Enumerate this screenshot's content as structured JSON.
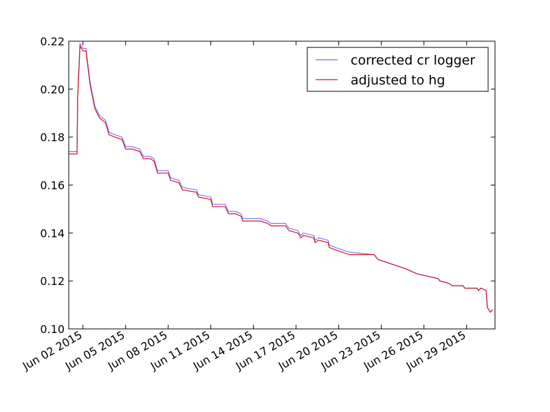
{
  "chart_data": {
    "type": "line",
    "title": "",
    "xlabel": "",
    "ylabel": "",
    "x_start": "2015-06-01",
    "x_end": "2015-07-01",
    "ylim": [
      0.1,
      0.22
    ],
    "grid": false,
    "legend_position": "top-right",
    "y_ticks": [
      {
        "value": 0.1,
        "label": "0.10"
      },
      {
        "value": 0.12,
        "label": "0.12"
      },
      {
        "value": 0.14,
        "label": "0.14"
      },
      {
        "value": 0.16,
        "label": "0.16"
      },
      {
        "value": 0.18,
        "label": "0.18"
      },
      {
        "value": 0.2,
        "label": "0.20"
      },
      {
        "value": 0.22,
        "label": "0.22"
      }
    ],
    "x_ticks": [
      {
        "date": "2015-06-02",
        "label": "Jun 02 2015"
      },
      {
        "date": "2015-06-05",
        "label": "Jun 05 2015"
      },
      {
        "date": "2015-06-08",
        "label": "Jun 08 2015"
      },
      {
        "date": "2015-06-11",
        "label": "Jun 11 2015"
      },
      {
        "date": "2015-06-14",
        "label": "Jun 14 2015"
      },
      {
        "date": "2015-06-17",
        "label": "Jun 17 2015"
      },
      {
        "date": "2015-06-20",
        "label": "Jun 20 2015"
      },
      {
        "date": "2015-06-23",
        "label": "Jun 23 2015"
      },
      {
        "date": "2015-06-26",
        "label": "Jun 26 2015"
      },
      {
        "date": "2015-06-29",
        "label": "Jun 29 2015"
      }
    ],
    "series": [
      {
        "name": "corrected cr logger",
        "color": "#6b6bff",
        "points": [
          [
            "2015-06-01 00:00",
            0.174
          ],
          [
            "2015-06-01 14:00",
            0.174
          ],
          [
            "2015-06-01 15:00",
            0.197
          ],
          [
            "2015-06-01 19:00",
            0.219
          ],
          [
            "2015-06-02 00:00",
            0.217
          ],
          [
            "2015-06-02 05:00",
            0.217
          ],
          [
            "2015-06-02 12:00",
            0.203
          ],
          [
            "2015-06-02 20:00",
            0.193
          ],
          [
            "2015-06-03 04:00",
            0.189
          ],
          [
            "2015-06-03 14:00",
            0.187
          ],
          [
            "2015-06-03 20:00",
            0.182
          ],
          [
            "2015-06-04 06:00",
            0.181
          ],
          [
            "2015-06-04 18:00",
            0.18
          ],
          [
            "2015-06-05 00:00",
            0.176
          ],
          [
            "2015-06-05 12:00",
            0.176
          ],
          [
            "2015-06-06 00:00",
            0.175
          ],
          [
            "2015-06-06 06:00",
            0.172
          ],
          [
            "2015-06-06 18:00",
            0.172
          ],
          [
            "2015-06-07 00:00",
            0.171
          ],
          [
            "2015-06-07 06:00",
            0.166
          ],
          [
            "2015-06-08 00:00",
            0.166
          ],
          [
            "2015-06-08 04:00",
            0.163
          ],
          [
            "2015-06-08 18:00",
            0.162
          ],
          [
            "2015-06-09 00:00",
            0.159
          ],
          [
            "2015-06-10 00:00",
            0.158
          ],
          [
            "2015-06-10 03:00",
            0.156
          ],
          [
            "2015-06-11 00:00",
            0.155
          ],
          [
            "2015-06-11 03:00",
            0.152
          ],
          [
            "2015-06-12 00:00",
            0.152
          ],
          [
            "2015-06-12 06:00",
            0.149
          ],
          [
            "2015-06-12 18:00",
            0.149
          ],
          [
            "2015-06-13 03:00",
            0.148
          ],
          [
            "2015-06-13 06:00",
            0.146
          ],
          [
            "2015-06-14 12:00",
            0.146
          ],
          [
            "2015-06-15 00:00",
            0.145
          ],
          [
            "2015-06-15 06:00",
            0.144
          ],
          [
            "2015-06-16 06:00",
            0.144
          ],
          [
            "2015-06-16 12:00",
            0.142
          ],
          [
            "2015-06-17 03:00",
            0.141
          ],
          [
            "2015-06-17 08:00",
            0.139
          ],
          [
            "2015-06-17 12:00",
            0.14
          ],
          [
            "2015-06-18 06:00",
            0.139
          ],
          [
            "2015-06-18 08:00",
            0.137
          ],
          [
            "2015-06-18 14:00",
            0.138
          ],
          [
            "2015-06-19 06:00",
            0.137
          ],
          [
            "2015-06-19 08:00",
            0.135
          ],
          [
            "2015-06-19 18:00",
            0.134
          ],
          [
            "2015-06-20 06:00",
            0.133
          ],
          [
            "2015-06-20 18:00",
            0.132
          ],
          [
            "2015-06-22 12:00",
            0.131
          ],
          [
            "2015-06-22 18:00",
            0.129
          ],
          [
            "2015-06-23 18:00",
            0.127
          ],
          [
            "2015-06-24 18:00",
            0.125
          ],
          [
            "2015-06-25 12:00",
            0.123
          ],
          [
            "2015-06-26 06:00",
            0.122
          ],
          [
            "2015-06-27 00:00",
            0.121
          ],
          [
            "2015-06-27 03:00",
            0.12
          ],
          [
            "2015-06-27 18:00",
            0.119
          ],
          [
            "2015-06-28 00:00",
            0.118
          ],
          [
            "2015-06-28 18:00",
            0.118
          ],
          [
            "2015-06-28 21:00",
            0.117
          ],
          [
            "2015-06-29 18:00",
            0.117
          ],
          [
            "2015-06-29 20:00",
            0.116
          ],
          [
            "2015-06-30 00:00",
            0.117
          ],
          [
            "2015-06-30 09:00",
            0.116
          ],
          [
            "2015-06-30 11:00",
            0.109
          ],
          [
            "2015-06-30 16:00",
            0.107
          ],
          [
            "2015-06-30 20:00",
            0.108
          ]
        ]
      },
      {
        "name": "adjusted to hg",
        "color": "#d0101e",
        "points": [
          [
            "2015-06-01 00:00",
            0.173
          ],
          [
            "2015-06-01 14:00",
            0.173
          ],
          [
            "2015-06-01 15:00",
            0.196
          ],
          [
            "2015-06-01 19:00",
            0.218
          ],
          [
            "2015-06-02 00:00",
            0.216
          ],
          [
            "2015-06-02 05:00",
            0.216
          ],
          [
            "2015-06-02 12:00",
            0.202
          ],
          [
            "2015-06-02 20:00",
            0.192
          ],
          [
            "2015-06-03 04:00",
            0.188
          ],
          [
            "2015-06-03 14:00",
            0.186
          ],
          [
            "2015-06-03 20:00",
            0.181
          ],
          [
            "2015-06-04 06:00",
            0.18
          ],
          [
            "2015-06-04 18:00",
            0.179
          ],
          [
            "2015-06-05 00:00",
            0.175
          ],
          [
            "2015-06-05 12:00",
            0.175
          ],
          [
            "2015-06-06 00:00",
            0.174
          ],
          [
            "2015-06-06 06:00",
            0.171
          ],
          [
            "2015-06-06 18:00",
            0.171
          ],
          [
            "2015-06-07 00:00",
            0.17
          ],
          [
            "2015-06-07 06:00",
            0.165
          ],
          [
            "2015-06-08 00:00",
            0.165
          ],
          [
            "2015-06-08 04:00",
            0.162
          ],
          [
            "2015-06-08 18:00",
            0.161
          ],
          [
            "2015-06-09 00:00",
            0.158
          ],
          [
            "2015-06-10 00:00",
            0.157
          ],
          [
            "2015-06-10 03:00",
            0.155
          ],
          [
            "2015-06-11 00:00",
            0.154
          ],
          [
            "2015-06-11 03:00",
            0.151
          ],
          [
            "2015-06-12 00:00",
            0.151
          ],
          [
            "2015-06-12 06:00",
            0.148
          ],
          [
            "2015-06-12 18:00",
            0.148
          ],
          [
            "2015-06-13 03:00",
            0.147
          ],
          [
            "2015-06-13 06:00",
            0.145
          ],
          [
            "2015-06-14 12:00",
            0.145
          ],
          [
            "2015-06-15 00:00",
            0.144
          ],
          [
            "2015-06-15 06:00",
            0.143
          ],
          [
            "2015-06-16 06:00",
            0.143
          ],
          [
            "2015-06-16 12:00",
            0.141
          ],
          [
            "2015-06-17 03:00",
            0.14
          ],
          [
            "2015-06-17 08:00",
            0.138
          ],
          [
            "2015-06-17 12:00",
            0.139
          ],
          [
            "2015-06-18 06:00",
            0.138
          ],
          [
            "2015-06-18 08:00",
            0.136
          ],
          [
            "2015-06-18 14:00",
            0.137
          ],
          [
            "2015-06-19 06:00",
            0.136
          ],
          [
            "2015-06-19 08:00",
            0.134
          ],
          [
            "2015-06-19 18:00",
            0.133
          ],
          [
            "2015-06-20 06:00",
            0.132
          ],
          [
            "2015-06-20 18:00",
            0.131
          ],
          [
            "2015-06-22 12:00",
            0.131
          ],
          [
            "2015-06-22 18:00",
            0.129
          ],
          [
            "2015-06-23 18:00",
            0.127
          ],
          [
            "2015-06-24 18:00",
            0.125
          ],
          [
            "2015-06-25 12:00",
            0.123
          ],
          [
            "2015-06-26 06:00",
            0.122
          ],
          [
            "2015-06-27 00:00",
            0.121
          ],
          [
            "2015-06-27 03:00",
            0.12
          ],
          [
            "2015-06-27 18:00",
            0.119
          ],
          [
            "2015-06-28 00:00",
            0.118
          ],
          [
            "2015-06-28 18:00",
            0.118
          ],
          [
            "2015-06-28 21:00",
            0.117
          ],
          [
            "2015-06-29 18:00",
            0.117
          ],
          [
            "2015-06-29 20:00",
            0.116
          ],
          [
            "2015-06-30 00:00",
            0.117
          ],
          [
            "2015-06-30 09:00",
            0.116
          ],
          [
            "2015-06-30 11:00",
            0.109
          ],
          [
            "2015-06-30 16:00",
            0.107
          ],
          [
            "2015-06-30 20:00",
            0.108
          ]
        ]
      }
    ]
  }
}
